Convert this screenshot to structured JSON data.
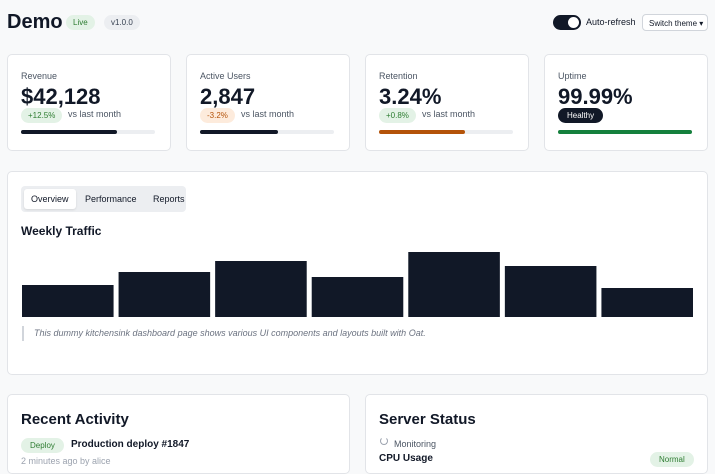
{
  "header": {
    "title": "Demo",
    "status_badge": "Live",
    "version": "v1.0.0",
    "toggle_label": "Auto-refresh",
    "theme_button": "Switch theme"
  },
  "stats": [
    {
      "label": "Revenue",
      "value": "$42,128",
      "change": "+12.5%",
      "note": "vs last month",
      "trend": "up",
      "progress": 72
    },
    {
      "label": "Active Users",
      "value": "2,847",
      "change": "-3.2%",
      "note": "vs last month",
      "trend": "down",
      "progress": 58
    },
    {
      "label": "Retention",
      "value": "3.24%",
      "change": "+0.8%",
      "note": "vs last month",
      "trend": "up",
      "progress": 64
    },
    {
      "label": "Uptime",
      "value": "99.99%",
      "change": "Healthy",
      "trend": "neutral",
      "progress": 100
    }
  ],
  "tabs": [
    "Overview",
    "Performance",
    "Reports"
  ],
  "weekly_traffic": {
    "title": "Weekly Traffic",
    "values": [
      32,
      45,
      56,
      40,
      65,
      51,
      29
    ]
  },
  "quote": "This dummy kitchensink dashboard page shows various UI components and layouts built with Oat.",
  "recent_activity": {
    "title": "Recent Activity",
    "items": [
      {
        "badge": "Deploy",
        "title": "Production deploy #1847",
        "meta": "2 minutes ago by alice"
      }
    ]
  },
  "server_status": {
    "title": "Server Status",
    "status": "Monitoring",
    "metric": "CPU Usage",
    "badge": "Normal"
  }
}
